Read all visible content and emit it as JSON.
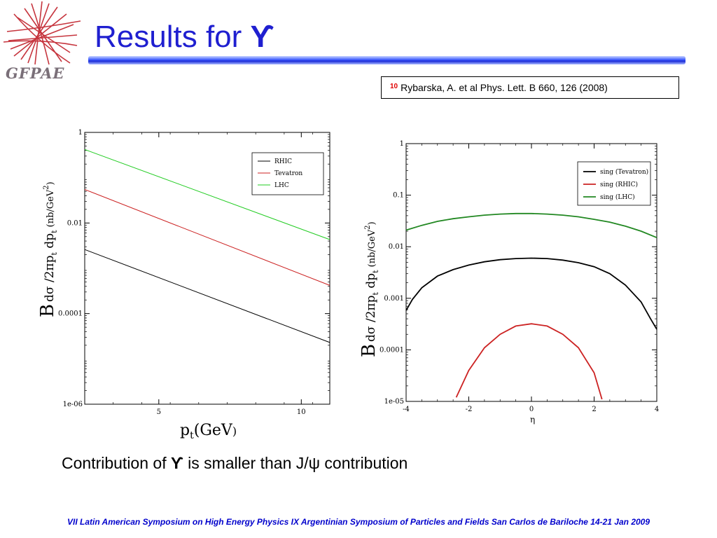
{
  "logo": {
    "text": "GFPAE"
  },
  "title": {
    "prefix": "Results for ",
    "particle": "ϒ"
  },
  "reference": {
    "number": "10",
    "text": "Rybarska, A. et al Phys. Lett. B 660, 126 (2008)"
  },
  "caption": {
    "before": "Contribution of ",
    "particle": "ϒ",
    "after": " is smaller than J/ψ contribution"
  },
  "footer": "VII Latin American Symposium on High Energy Physics  IX Argentinian Symposium of Particles and Fields San Carlos de Bariloche 14-21 Jan 2009",
  "chart_data": [
    {
      "type": "line",
      "xlabel": "p_t(GeV)",
      "ylabel": "B dσ /2πp_t dp_t (nb/GeV^2)",
      "ylog": true,
      "xlim": [
        2.4,
        11
      ],
      "ylim": [
        1e-06,
        1
      ],
      "xticks": [
        5,
        10
      ],
      "xtick_labels": [
        "5",
        "10"
      ],
      "yticks": [
        1,
        0.01,
        0.0001,
        1e-06
      ],
      "ytick_labels": [
        "1",
        "0.01",
        "0.0001",
        "1e-06"
      ],
      "legend": "top-right",
      "series": [
        {
          "name": "RHIC",
          "color": "#000000",
          "x": [
            2.4,
            11
          ],
          "y": [
            0.0026,
            2.3e-05
          ]
        },
        {
          "name": "Tevatron",
          "color": "#cc2222",
          "x": [
            2.4,
            11
          ],
          "y": [
            0.055,
            0.00042
          ]
        },
        {
          "name": "LHC",
          "color": "#22cc22",
          "x": [
            2.4,
            11
          ],
          "y": [
            0.42,
            0.0043
          ]
        }
      ]
    },
    {
      "type": "line",
      "xlabel": "η",
      "ylabel": "B dσ /2πp_t dp_t (nb/GeV^2)",
      "ylog": true,
      "xlim": [
        -4,
        4
      ],
      "ylim": [
        1e-05,
        1
      ],
      "xticks": [
        -4,
        -2,
        0,
        2,
        4
      ],
      "xtick_labels": [
        "-4",
        "-2",
        "0",
        "2",
        "4"
      ],
      "yticks": [
        1,
        0.1,
        0.01,
        0.001,
        0.0001,
        1e-05
      ],
      "ytick_labels": [
        "1",
        "0.1",
        "0.01",
        "0.001",
        "0.0001",
        "1e-05"
      ],
      "legend": "top-right",
      "series": [
        {
          "name": "sing (Tevatron)",
          "color": "#000000",
          "x": [
            -4,
            -3.8,
            -3.5,
            -3,
            -2.5,
            -2,
            -1.5,
            -1,
            -0.5,
            0,
            0.5,
            1,
            1.5,
            2,
            2.5,
            3,
            3.5,
            3.8,
            4
          ],
          "y": [
            0.00058,
            0.00095,
            0.0016,
            0.0027,
            0.0036,
            0.0044,
            0.0051,
            0.0056,
            0.0059,
            0.006,
            0.0059,
            0.0055,
            0.0049,
            0.0041,
            0.003,
            0.0018,
            0.00085,
            0.0004,
            0.00025
          ]
        },
        {
          "name": "sing (RHIC)",
          "color": "#cc2222",
          "x": [
            -2.4,
            -2,
            -1.5,
            -1,
            -0.5,
            0,
            0.5,
            1,
            1.5,
            2,
            2.25
          ],
          "y": [
            1.2e-05,
            4e-05,
            0.00011,
            0.0002,
            0.00029,
            0.00032,
            0.00029,
            0.0002,
            0.00011,
            3.6e-05,
            1.1e-05
          ]
        },
        {
          "name": "sing (LHC)",
          "color": "#228822",
          "x": [
            -4,
            -3.5,
            -3,
            -2.5,
            -2,
            -1.5,
            -1,
            -0.5,
            0,
            0.5,
            1,
            1.5,
            2,
            2.5,
            3,
            3.5,
            4
          ],
          "y": [
            0.021,
            0.026,
            0.031,
            0.035,
            0.038,
            0.041,
            0.043,
            0.044,
            0.044,
            0.043,
            0.041,
            0.038,
            0.034,
            0.03,
            0.025,
            0.02,
            0.015
          ]
        }
      ]
    }
  ]
}
